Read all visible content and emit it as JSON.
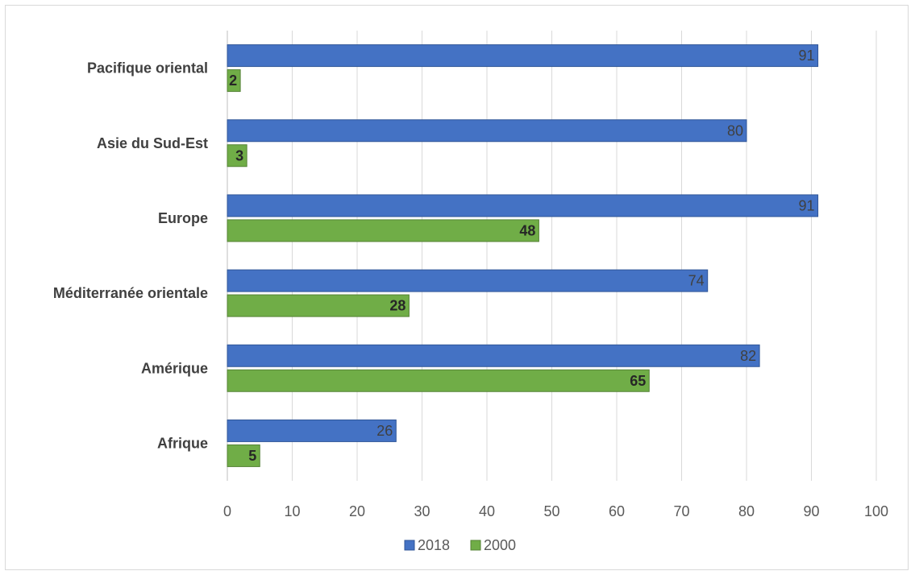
{
  "chart_data": {
    "type": "bar",
    "orientation": "horizontal",
    "categories": [
      "Pacifique oriental",
      "Asie du Sud-Est",
      "Europe",
      "Méditerranée orientale",
      "Amérique",
      "Afrique"
    ],
    "series": [
      {
        "name": "2018",
        "values": [
          91,
          80,
          91,
          74,
          82,
          26
        ],
        "color": "#4472C4",
        "border": "#2F5597"
      },
      {
        "name": "2000",
        "values": [
          2,
          3,
          48,
          28,
          65,
          5
        ],
        "color": "#70AD47",
        "border": "#548235"
      }
    ],
    "xlim": [
      0,
      100
    ],
    "x_ticks": [
      0,
      10,
      20,
      30,
      40,
      50,
      60,
      70,
      80,
      90,
      100
    ],
    "title": "",
    "xlabel": "",
    "ylabel": "",
    "grid": "vertical",
    "legend_position": "bottom",
    "data_labels": true
  }
}
